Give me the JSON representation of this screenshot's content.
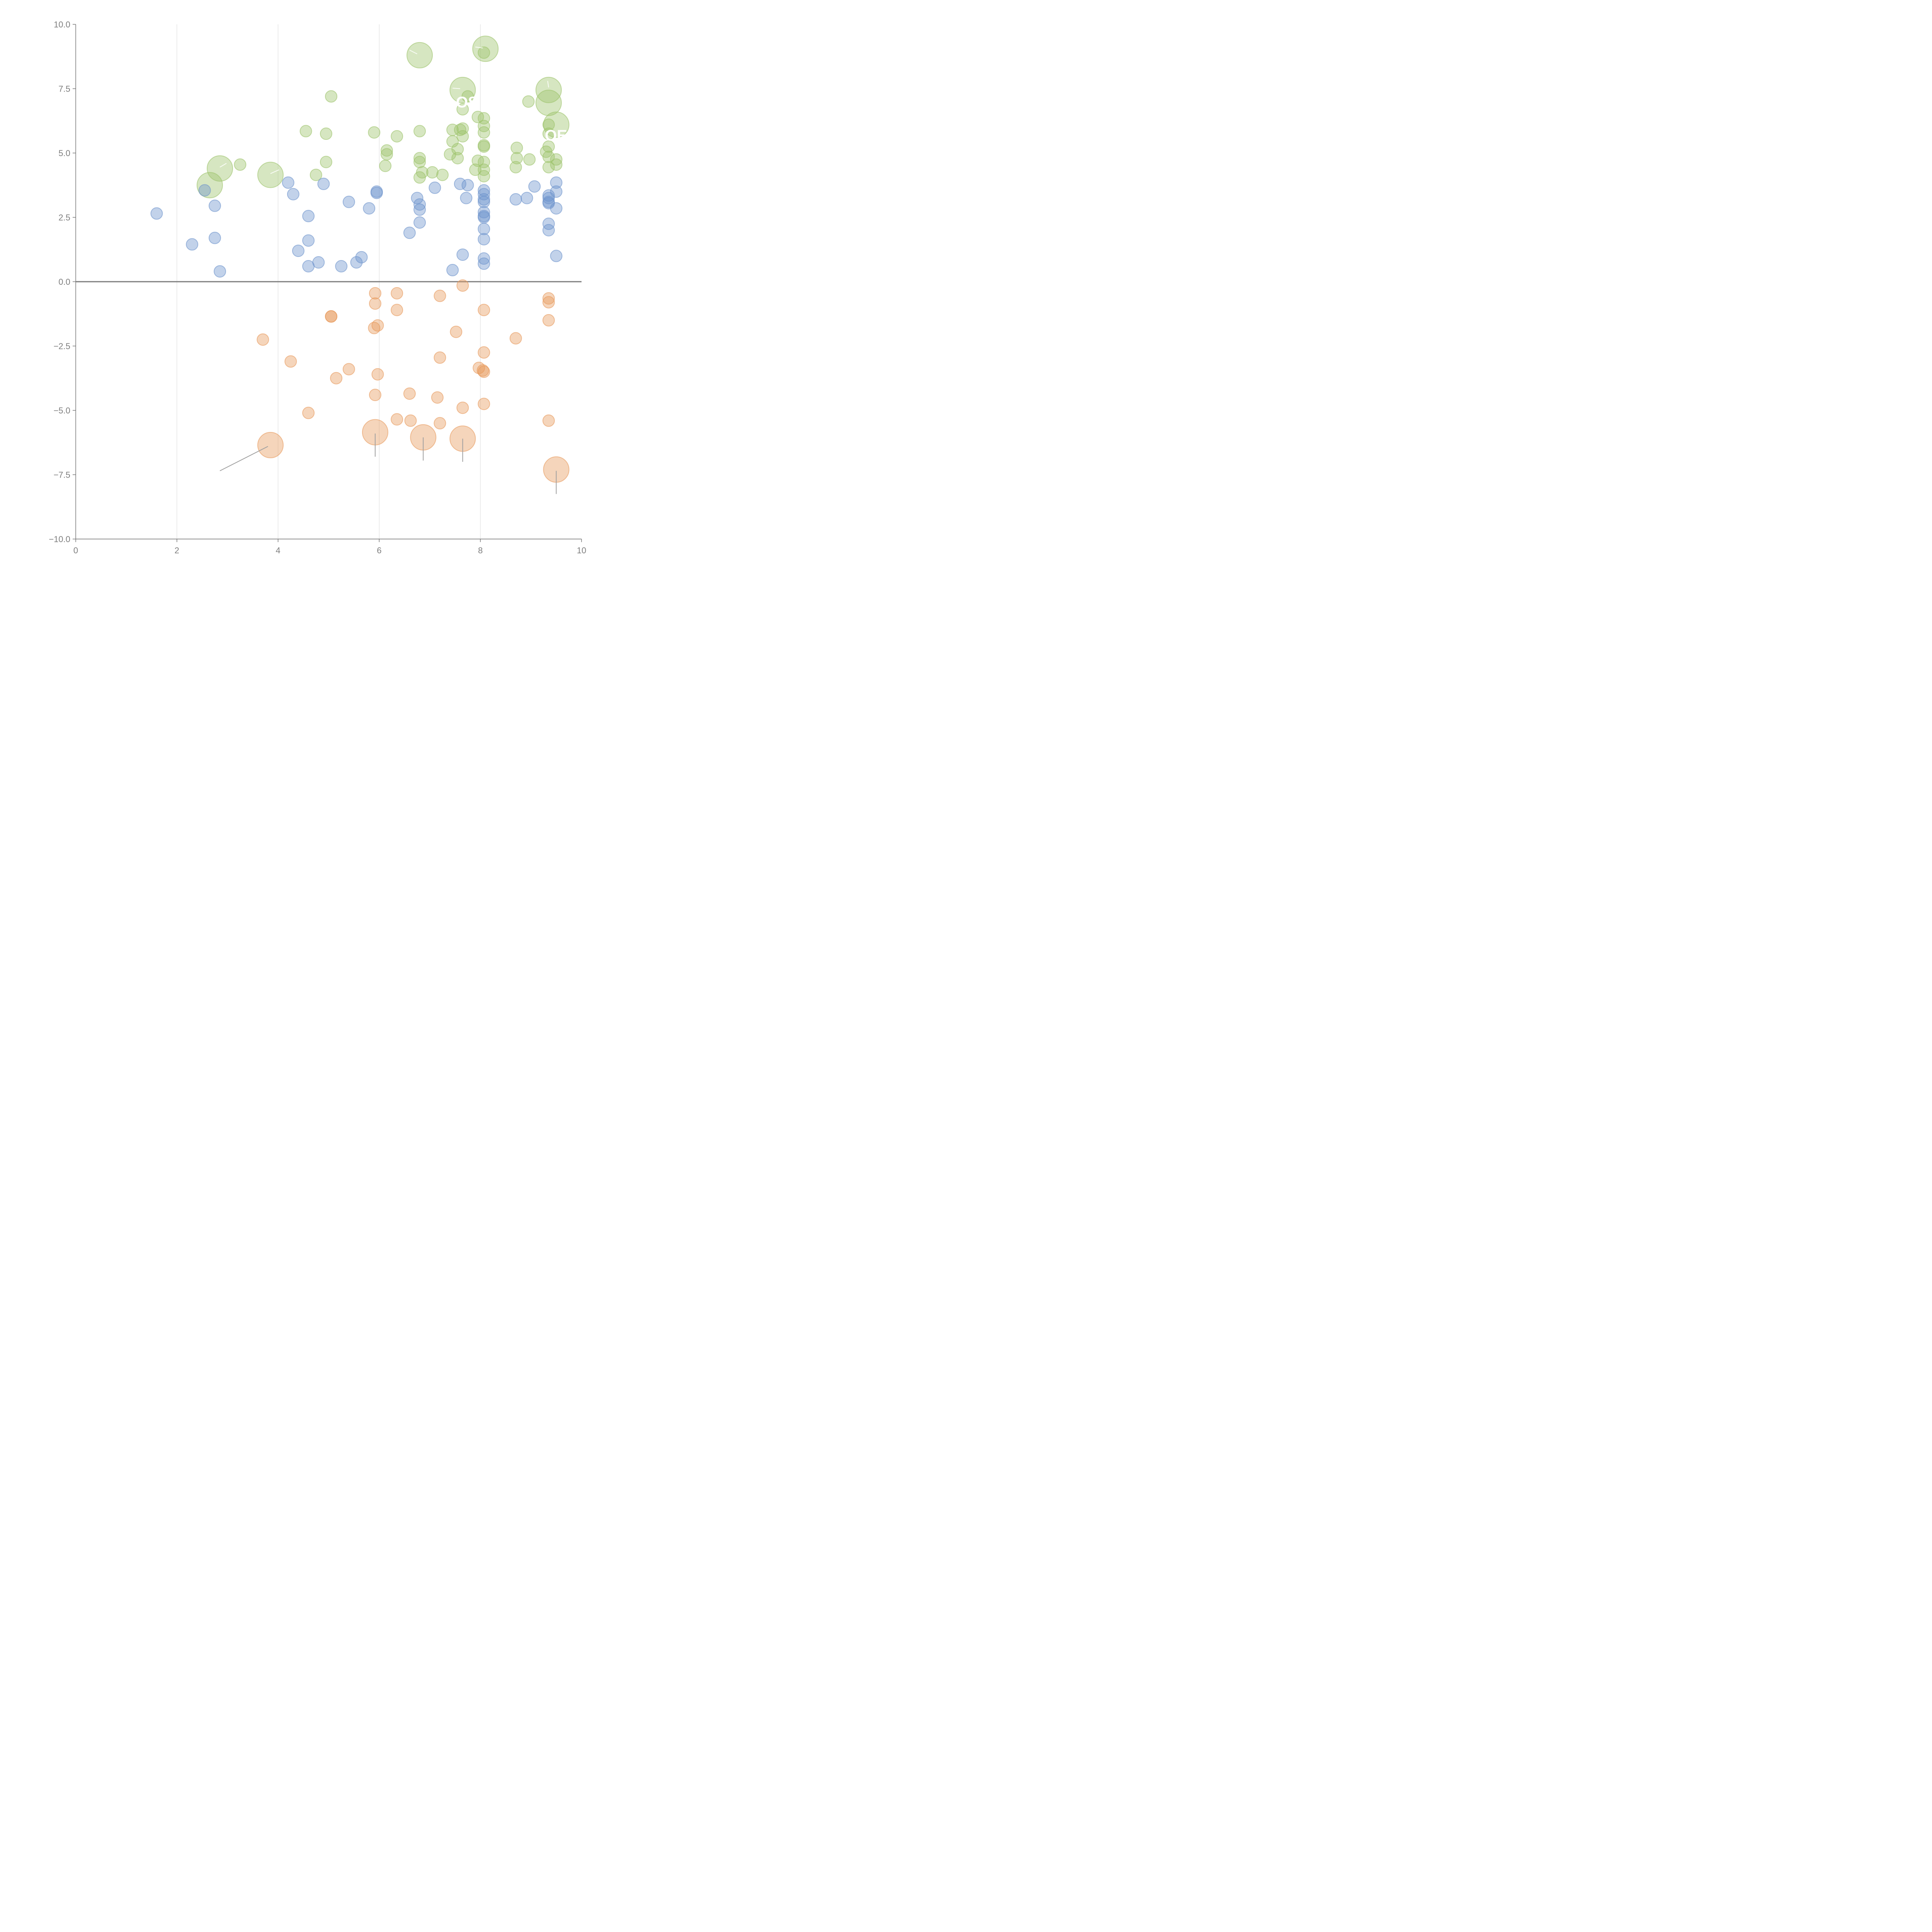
{
  "chart_data": {
    "type": "scatter",
    "title": "",
    "xlabel": "",
    "ylabel": "",
    "xlim": [
      0,
      10
    ],
    "ylim": [
      -10,
      10
    ],
    "x_ticks": [
      "0",
      "2",
      "4",
      "6",
      "8",
      "10"
    ],
    "y_ticks": [
      "10.0",
      "7.5",
      "5.0",
      "2.5",
      "0.0",
      "−2.5",
      "−5.0",
      "−7.5",
      "−10.0"
    ],
    "grid": "vertical lines at x = 2, 4, 6, 8",
    "colors": {
      "green": "#9dc36b",
      "blue": "#6d93cc",
      "orange": "#e89a5c",
      "axis": "#6e6e6e",
      "grid": "#d9d9d9",
      "tick_text": "#7f7f7f",
      "leader": "#a0a0a0"
    },
    "series": [
      {
        "name": "green",
        "color_key": "green",
        "points": [
          [
            2.85,
            4.4,
            2.2
          ],
          [
            2.65,
            3.75,
            2.2
          ],
          [
            3.85,
            4.15,
            2.2
          ],
          [
            3.25,
            4.55,
            1
          ],
          [
            4.55,
            5.85,
            1
          ],
          [
            4.75,
            4.15,
            1
          ],
          [
            4.95,
            5.75,
            1
          ],
          [
            4.95,
            4.65,
            1
          ],
          [
            5.05,
            7.2,
            1
          ],
          [
            5.9,
            5.8,
            1
          ],
          [
            6.15,
            5.1,
            1
          ],
          [
            6.15,
            4.95,
            1
          ],
          [
            6.12,
            4.5,
            1
          ],
          [
            6.35,
            5.65,
            1
          ],
          [
            6.8,
            8.8,
            2.2
          ],
          [
            6.8,
            5.85,
            1
          ],
          [
            6.8,
            4.8,
            1
          ],
          [
            6.8,
            4.65,
            1
          ],
          [
            6.85,
            4.25,
            1
          ],
          [
            6.8,
            4.05,
            1
          ],
          [
            7.05,
            4.25,
            1
          ],
          [
            7.25,
            4.15,
            1
          ],
          [
            7.45,
            5.9,
            1
          ],
          [
            7.45,
            5.45,
            1
          ],
          [
            7.55,
            5.15,
            1
          ],
          [
            7.4,
            4.95,
            1
          ],
          [
            7.55,
            4.8,
            1
          ],
          [
            7.65,
            7.45,
            2.2
          ],
          [
            7.75,
            7.2,
            1
          ],
          [
            7.65,
            6.7,
            1
          ],
          [
            7.65,
            5.95,
            1
          ],
          [
            7.6,
            5.9,
            1
          ],
          [
            7.65,
            5.65,
            1
          ],
          [
            8.1,
            9.05,
            2.2
          ],
          [
            8.07,
            8.9,
            1
          ],
          [
            7.95,
            6.4,
            1
          ],
          [
            8.07,
            6.35,
            1
          ],
          [
            8.07,
            6.05,
            1
          ],
          [
            8.07,
            5.8,
            1
          ],
          [
            8.07,
            5.3,
            1
          ],
          [
            8.07,
            5.25,
            1
          ],
          [
            8.07,
            4.65,
            1
          ],
          [
            7.95,
            4.7,
            1
          ],
          [
            8.07,
            4.35,
            1
          ],
          [
            7.9,
            4.35,
            1
          ],
          [
            8.07,
            4.1,
            1
          ],
          [
            8.72,
            5.2,
            1
          ],
          [
            8.72,
            4.8,
            1
          ],
          [
            8.7,
            4.45,
            1
          ],
          [
            8.95,
            7.0,
            1
          ],
          [
            8.97,
            4.75,
            1
          ],
          [
            9.35,
            7.45,
            2.2
          ],
          [
            9.35,
            6.95,
            2.2
          ],
          [
            9.5,
            6.1,
            2.2
          ],
          [
            9.35,
            6.1,
            1
          ],
          [
            9.35,
            5.75,
            1
          ],
          [
            9.35,
            5.25,
            1
          ],
          [
            9.3,
            5.05,
            1
          ],
          [
            9.35,
            4.85,
            1
          ],
          [
            9.35,
            4.45,
            1
          ],
          [
            9.5,
            4.75,
            1
          ],
          [
            9.5,
            4.55,
            1
          ]
        ]
      },
      {
        "name": "blue",
        "color_key": "blue",
        "points": [
          [
            1.6,
            2.65,
            1
          ],
          [
            2.3,
            1.45,
            1
          ],
          [
            2.55,
            3.55,
            1
          ],
          [
            2.75,
            2.95,
            1
          ],
          [
            2.75,
            1.7,
            1
          ],
          [
            2.85,
            0.4,
            1
          ],
          [
            4.2,
            3.85,
            1
          ],
          [
            4.3,
            3.4,
            1
          ],
          [
            4.6,
            2.55,
            1
          ],
          [
            4.6,
            1.6,
            1
          ],
          [
            4.4,
            1.2,
            1
          ],
          [
            4.6,
            0.6,
            1
          ],
          [
            4.8,
            0.75,
            1
          ],
          [
            4.9,
            3.8,
            1
          ],
          [
            5.25,
            0.6,
            1
          ],
          [
            5.4,
            3.1,
            1
          ],
          [
            5.55,
            0.75,
            1
          ],
          [
            5.65,
            0.95,
            1
          ],
          [
            5.8,
            2.85,
            1
          ],
          [
            5.95,
            3.5,
            1
          ],
          [
            5.95,
            3.45,
            1
          ],
          [
            6.6,
            1.9,
            1
          ],
          [
            6.75,
            3.25,
            1
          ],
          [
            6.8,
            3.0,
            1
          ],
          [
            6.8,
            2.8,
            1
          ],
          [
            6.8,
            2.3,
            1
          ],
          [
            7.1,
            3.65,
            1
          ],
          [
            7.45,
            0.45,
            1
          ],
          [
            7.6,
            3.8,
            1
          ],
          [
            7.65,
            1.05,
            1
          ],
          [
            7.72,
            3.25,
            1
          ],
          [
            7.75,
            3.75,
            1
          ],
          [
            8.07,
            3.55,
            1
          ],
          [
            8.07,
            3.4,
            1
          ],
          [
            8.07,
            3.2,
            1
          ],
          [
            8.07,
            3.1,
            1
          ],
          [
            8.07,
            2.7,
            1
          ],
          [
            8.07,
            2.55,
            1
          ],
          [
            8.07,
            2.5,
            1
          ],
          [
            8.07,
            2.05,
            1
          ],
          [
            8.07,
            1.65,
            1
          ],
          [
            8.07,
            0.9,
            1
          ],
          [
            8.07,
            0.7,
            1
          ],
          [
            8.7,
            3.2,
            1
          ],
          [
            8.92,
            3.25,
            1
          ],
          [
            9.07,
            3.7,
            1
          ],
          [
            9.35,
            3.35,
            1
          ],
          [
            9.35,
            3.25,
            1
          ],
          [
            9.35,
            3.1,
            1
          ],
          [
            9.35,
            3.05,
            1
          ],
          [
            9.35,
            2.25,
            1
          ],
          [
            9.35,
            2.0,
            1
          ],
          [
            9.5,
            3.85,
            1
          ],
          [
            9.5,
            3.5,
            1
          ],
          [
            9.5,
            2.85,
            1
          ],
          [
            9.5,
            1.0,
            1
          ]
        ]
      },
      {
        "name": "orange",
        "color_key": "orange",
        "points": [
          [
            3.7,
            -2.25,
            1
          ],
          [
            3.85,
            -6.35,
            2.2
          ],
          [
            4.25,
            -3.1,
            1
          ],
          [
            4.6,
            -5.1,
            1
          ],
          [
            5.05,
            -1.35,
            1
          ],
          [
            5.05,
            -1.35,
            1
          ],
          [
            5.15,
            -3.75,
            1
          ],
          [
            5.4,
            -3.4,
            1
          ],
          [
            5.92,
            -0.45,
            1
          ],
          [
            5.92,
            -0.85,
            1
          ],
          [
            5.9,
            -1.8,
            1
          ],
          [
            5.97,
            -1.7,
            1
          ],
          [
            5.97,
            -3.6,
            1
          ],
          [
            5.92,
            -4.4,
            1
          ],
          [
            5.92,
            -5.85,
            2.2
          ],
          [
            6.35,
            -0.45,
            1
          ],
          [
            6.35,
            -1.1,
            1
          ],
          [
            6.35,
            -5.35,
            1
          ],
          [
            6.6,
            -4.35,
            1
          ],
          [
            6.62,
            -5.4,
            1
          ],
          [
            6.87,
            -6.05,
            2.2
          ],
          [
            7.2,
            -0.55,
            1
          ],
          [
            7.2,
            -2.95,
            1
          ],
          [
            7.15,
            -4.5,
            1
          ],
          [
            7.2,
            -5.5,
            1
          ],
          [
            7.52,
            -1.95,
            1
          ],
          [
            7.65,
            -0.15,
            1
          ],
          [
            7.65,
            -4.9,
            1
          ],
          [
            7.65,
            -6.1,
            2.2
          ],
          [
            7.97,
            -3.35,
            1
          ],
          [
            8.05,
            -3.45,
            1
          ],
          [
            8.07,
            -3.5,
            1
          ],
          [
            8.07,
            -1.1,
            1
          ],
          [
            8.07,
            -2.75,
            1
          ],
          [
            8.07,
            -4.75,
            1
          ],
          [
            8.7,
            -2.2,
            1
          ],
          [
            9.35,
            -0.65,
            1
          ],
          [
            9.35,
            -0.8,
            1
          ],
          [
            9.35,
            -1.5,
            1
          ],
          [
            9.35,
            -5.4,
            1
          ],
          [
            9.5,
            -7.3,
            2.2
          ]
        ]
      }
    ],
    "annotations": [
      {
        "text": "OS",
        "color": "#ffffff"
      },
      {
        "text": "OE",
        "color": "#ffffff"
      }
    ]
  }
}
